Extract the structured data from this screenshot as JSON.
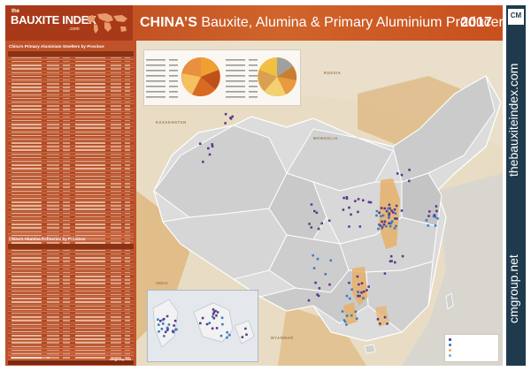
{
  "header": {
    "brand_the": "the",
    "brand_name": "BAUXITE INDEX",
    "brand_com": ".com",
    "title_strong": "CHINA’S",
    "title_rest": " Bauxite, Alumina & Primary Aluminium Producers",
    "year": "2017"
  },
  "left_panel": {
    "smelters_heading": "China’s Primary Aluminium Smelters by Province",
    "refineries_heading": "China’s Alumina Refineries by Province",
    "footer_right": "cmgroup.net"
  },
  "map": {
    "labels": {
      "russia": "RUSSIA",
      "mongolia": "MONGOLIA",
      "kazakhstan": "KAZAKHSTAN",
      "india": "INDIA",
      "myanmar": "MYANMAR"
    }
  },
  "sidebar": {
    "logo": "CM",
    "site1": "thebauxiteindex.com",
    "site2": "cmgroup.net"
  },
  "colors": {
    "header": "#c8501f",
    "left_panel": "#c0522a",
    "sidebar": "#1f3a4d",
    "smelter_dot": "#5b3a8c",
    "refinery_dot": "#3a7fc0",
    "bauxite_zone": "#e8b06a"
  },
  "icons": {
    "globe": "globe-map-icon",
    "logo": "cm-logo-icon"
  }
}
